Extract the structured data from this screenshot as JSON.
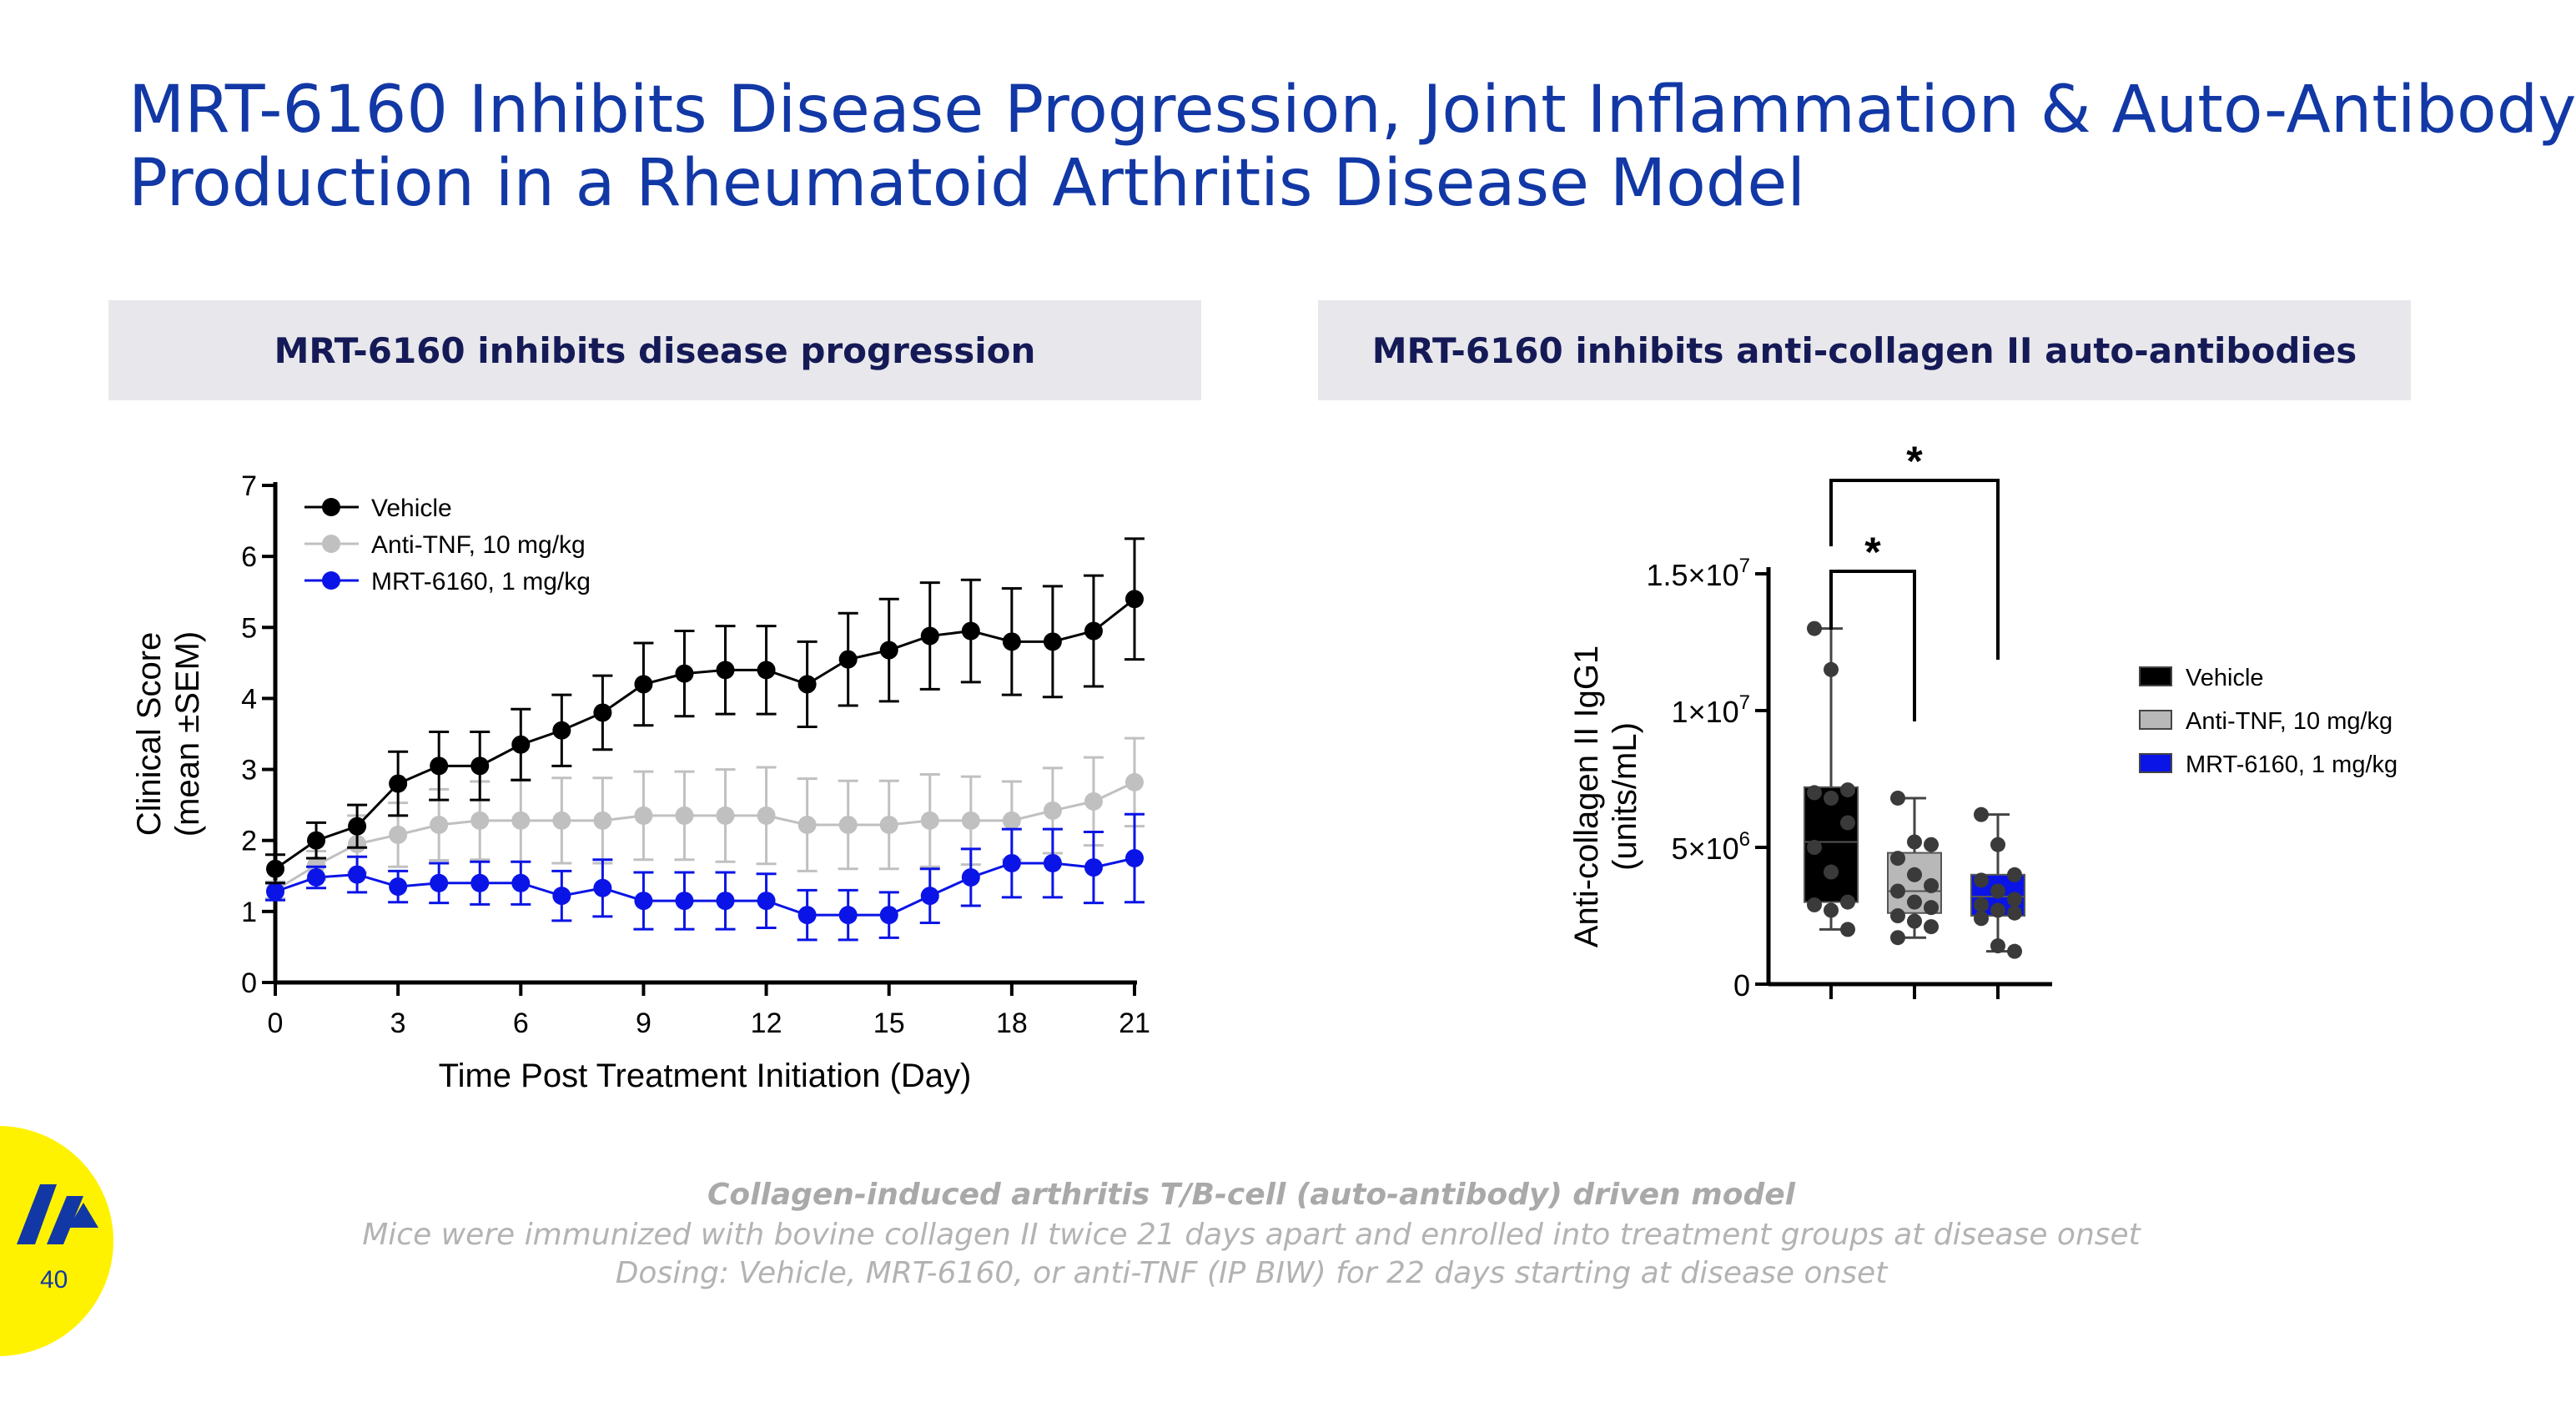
{
  "title": {
    "line1": "MRT-6160 Inhibits Disease Progression, Joint Inflammation & Auto-Antibody",
    "line2": "Production in a Rheumatoid Arthritis Disease Model"
  },
  "panels": {
    "left_header": "MRT-6160 inhibits disease progression",
    "right_header": "MRT-6160 inhibits anti-collagen II auto-antibodies"
  },
  "footnotes": {
    "title": "Collagen-induced arthritis T/B-cell (auto-antibody) driven model",
    "line1": "Mice were immunized with bovine collagen II twice 21 days apart and enrolled into treatment groups at disease onset",
    "line2": "Dosing: Vehicle, MRT-6160, or anti-TNF (IP BIW) for 22 days starting at disease onset"
  },
  "page_number": "40",
  "colors": {
    "title": "#1238a6",
    "vehicle": "#000000",
    "anti_tnf": "#c0c0c0",
    "mrt": "#0a14e6",
    "badge": "#fff200"
  },
  "chart_data": [
    {
      "type": "line",
      "title": "MRT-6160 inhibits disease progression",
      "xlabel": "Time Post Treatment Initiation (Day)",
      "ylabel_line1": "Clinical Score",
      "ylabel_line2": "(mean ±SEM)",
      "xlim": [
        0,
        21
      ],
      "ylim": [
        0,
        7
      ],
      "xticks": [
        0,
        3,
        6,
        9,
        12,
        15,
        18,
        21
      ],
      "yticks": [
        0,
        1,
        2,
        3,
        4,
        5,
        6,
        7
      ],
      "legend_position": "top-left",
      "series": [
        {
          "name": "Vehicle",
          "color": "#000000",
          "x": [
            0,
            1,
            2,
            3,
            4,
            5,
            6,
            7,
            8,
            9,
            10,
            11,
            12,
            13,
            14,
            15,
            16,
            17,
            18,
            19,
            20,
            21
          ],
          "values": [
            1.6,
            2.0,
            2.2,
            2.8,
            3.05,
            3.05,
            3.35,
            3.55,
            3.8,
            4.2,
            4.35,
            4.4,
            4.4,
            4.2,
            4.55,
            4.68,
            4.88,
            4.95,
            4.8,
            4.8,
            4.95,
            5.4
          ],
          "err": [
            0.2,
            0.25,
            0.3,
            0.45,
            0.48,
            0.48,
            0.5,
            0.5,
            0.52,
            0.58,
            0.6,
            0.62,
            0.62,
            0.6,
            0.65,
            0.72,
            0.75,
            0.72,
            0.75,
            0.78,
            0.78,
            0.85
          ]
        },
        {
          "name": "Anti-TNF, 10 mg/kg",
          "color": "#c0c0c0",
          "x": [
            0,
            1,
            2,
            3,
            4,
            5,
            6,
            7,
            8,
            9,
            10,
            11,
            12,
            13,
            14,
            15,
            16,
            17,
            18,
            19,
            20,
            21
          ],
          "values": [
            1.3,
            1.65,
            1.95,
            2.08,
            2.22,
            2.28,
            2.28,
            2.28,
            2.28,
            2.35,
            2.35,
            2.35,
            2.35,
            2.22,
            2.22,
            2.22,
            2.28,
            2.28,
            2.28,
            2.42,
            2.55,
            2.82
          ],
          "err": [
            0.12,
            0.2,
            0.4,
            0.45,
            0.5,
            0.55,
            0.58,
            0.6,
            0.6,
            0.62,
            0.62,
            0.65,
            0.68,
            0.65,
            0.62,
            0.62,
            0.65,
            0.62,
            0.55,
            0.6,
            0.62,
            0.62
          ]
        },
        {
          "name": "MRT-6160, 1 mg/kg",
          "color": "#0a14e6",
          "x": [
            0,
            1,
            2,
            3,
            4,
            5,
            6,
            7,
            8,
            9,
            10,
            11,
            12,
            13,
            14,
            15,
            16,
            17,
            18,
            19,
            20,
            21
          ],
          "values": [
            1.28,
            1.48,
            1.52,
            1.35,
            1.4,
            1.4,
            1.4,
            1.22,
            1.33,
            1.15,
            1.15,
            1.15,
            1.15,
            0.95,
            0.95,
            0.95,
            1.22,
            1.48,
            1.68,
            1.68,
            1.62,
            1.75
          ],
          "err": [
            0.12,
            0.15,
            0.25,
            0.22,
            0.28,
            0.3,
            0.3,
            0.35,
            0.4,
            0.4,
            0.4,
            0.4,
            0.38,
            0.35,
            0.35,
            0.32,
            0.38,
            0.4,
            0.48,
            0.48,
            0.5,
            0.62
          ]
        }
      ]
    },
    {
      "type": "box",
      "title": "MRT-6160 inhibits anti-collagen II auto-antibodies",
      "ylabel_line1": "Anti-collagen II IgG1",
      "ylabel_line2": "(units/mL)",
      "ylim": [
        0,
        15000000
      ],
      "yticks": [
        {
          "value": 0,
          "base": "0",
          "exp": ""
        },
        {
          "value": 5000000,
          "base": "5×10",
          "exp": "6"
        },
        {
          "value": 10000000,
          "base": "1×10",
          "exp": "7"
        },
        {
          "value": 15000000,
          "base": "1.5×10",
          "exp": "7"
        }
      ],
      "legend_position": "right",
      "groups": [
        {
          "name": "Vehicle",
          "color": "#000000",
          "min": 2000000,
          "q1": 3000000,
          "median": 5200000,
          "q3": 7200000,
          "max": 13000000,
          "points": [
            13000000,
            11500000,
            7100000,
            7000000,
            6800000,
            5900000,
            5000000,
            4100000,
            3000000,
            2900000,
            2700000,
            2000000
          ]
        },
        {
          "name": "Anti-TNF, 10 mg/kg",
          "color": "#b8b8b8",
          "min": 1700000,
          "q1": 2600000,
          "median": 3400000,
          "q3": 4800000,
          "max": 6800000,
          "points": [
            6800000,
            5200000,
            5100000,
            4600000,
            4000000,
            3600000,
            3400000,
            3000000,
            2800000,
            2500000,
            2300000,
            2100000,
            1700000
          ]
        },
        {
          "name": "MRT-6160, 1 mg/kg",
          "color": "#0a14e6",
          "min": 1200000,
          "q1": 2500000,
          "median": 3200000,
          "q3": 4000000,
          "max": 6200000,
          "points": [
            6200000,
            5100000,
            4000000,
            3800000,
            3400000,
            3100000,
            2900000,
            2700000,
            2600000,
            2400000,
            1400000,
            1200000
          ]
        }
      ],
      "significance": [
        {
          "from": "Vehicle",
          "to": "Anti-TNF, 10 mg/kg",
          "label": "*"
        },
        {
          "from": "Vehicle",
          "to": "MRT-6160, 1 mg/kg",
          "label": "*"
        }
      ]
    }
  ]
}
